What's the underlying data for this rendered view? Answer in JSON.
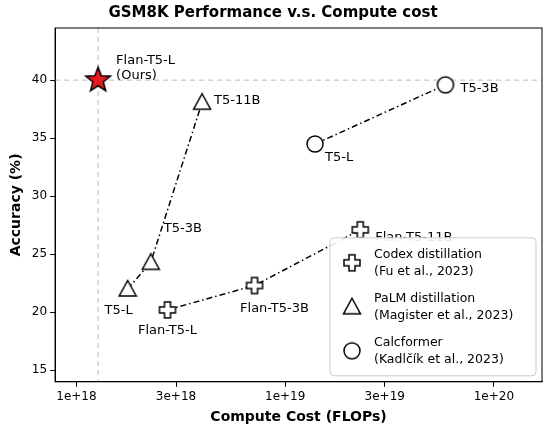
{
  "chart_data": {
    "type": "scatter",
    "title": "GSM8K Performance v.s. Compute cost",
    "x_label": "Compute Cost (FLOPs)",
    "y_label": "Accuracy (%)",
    "log": "x",
    "grid": false,
    "legend": "lower right",
    "xlim": [
      7.9e+17,
      1.7e+20
    ],
    "xticks": [
      {
        "value": 1e+18,
        "label": "1e+18"
      },
      {
        "value": 3e+18,
        "label": "3e+18"
      },
      {
        "value": 1e+19,
        "label": "1e+19"
      },
      {
        "value": 3e+19,
        "label": "3e+19"
      },
      {
        "value": 1e+20,
        "label": "1e+20"
      }
    ],
    "ylim": [
      14,
      44.5
    ],
    "yticks": [
      15,
      20,
      25,
      30,
      35,
      40
    ],
    "series": [
      {
        "name": [
          "Codex distillation",
          "(Fu et al., 2023)"
        ],
        "color": "#000000",
        "marker": "plus",
        "line_style": "dashdot",
        "x": [
          2.73e+18,
          7.13e+18,
          2.29e+19
        ],
        "values": [
          20.2,
          22.3,
          27.1
        ],
        "labels": [
          "Flan-T5-L",
          "Flan-T5-3B",
          "Flan-T5-11B"
        ]
      },
      {
        "name": [
          "PaLM distillation",
          "(Magister et al., 2023)"
        ],
        "color": "#000000",
        "marker": "triangle",
        "line_style": "dashdot",
        "x": [
          1.76e+18,
          2.27e+18,
          4e+18
        ],
        "values": [
          22,
          24.3,
          38.1
        ],
        "labels": [
          "T5-L",
          "T5-3B",
          "T5-11B"
        ]
      },
      {
        "name": [
          "Calcformer",
          "(Kadlčík et al., 2023)"
        ],
        "color": "#000000",
        "marker": "circle",
        "line_style": "dashdot",
        "x": [
          1.39e+19,
          5.86e+19
        ],
        "values": [
          34.5,
          39.6
        ],
        "labels": [
          "T5-L",
          "T5-3B"
        ]
      }
    ],
    "highlight": {
      "x": 1.27e+18,
      "y": 40,
      "label": [
        "Flan-T5-L",
        "(Ours)"
      ],
      "color": "#e41a1c",
      "marker": "star"
    }
  }
}
